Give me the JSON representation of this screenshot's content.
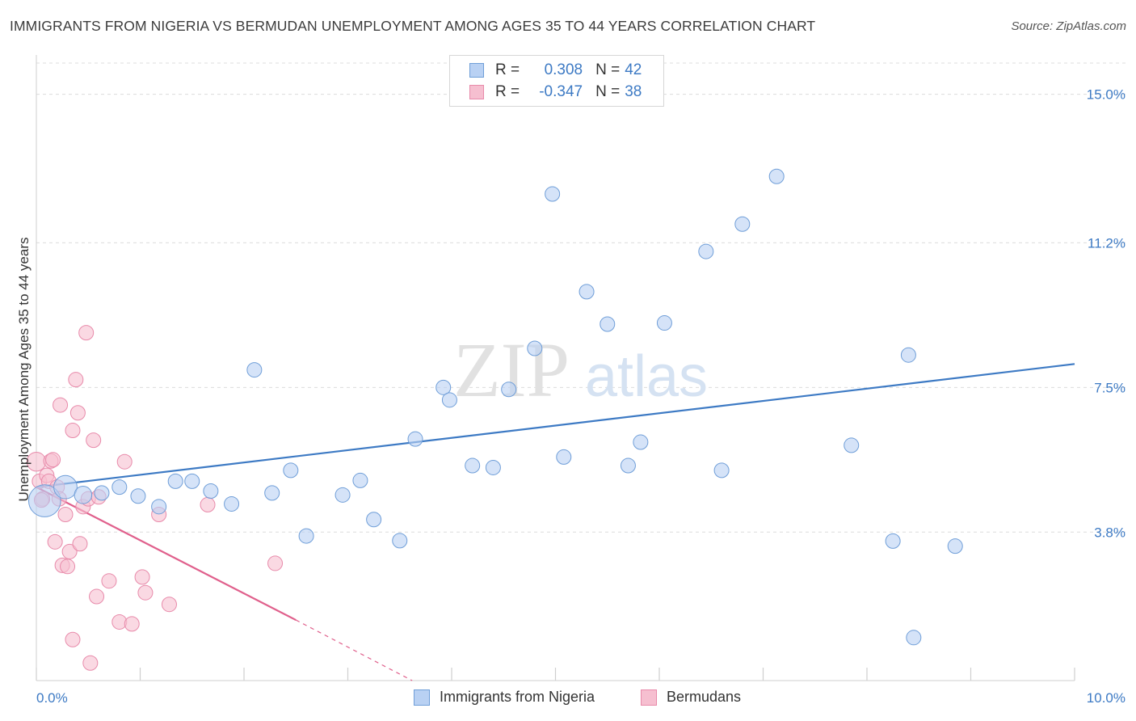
{
  "title": "IMMIGRANTS FROM NIGERIA VS BERMUDAN UNEMPLOYMENT AMONG AGES 35 TO 44 YEARS CORRELATION CHART",
  "source": "Source: ZipAtlas.com",
  "watermark": {
    "zip": "ZIP",
    "atlas": "atlas"
  },
  "legend": {
    "row1": {
      "r_label": "R =",
      "r_value": "0.308",
      "n_label": "N =",
      "n_value": "42"
    },
    "row2": {
      "r_label": "R =",
      "r_value": "-0.347",
      "n_label": "N =",
      "n_value": "38"
    }
  },
  "colors": {
    "blue": "#3d7ac4",
    "blue_fill": "#b9d1f3",
    "pink": "#e0608c",
    "pink_fill": "#f6bfd0",
    "grid": "#dcdcdc",
    "axis_text": "#3d7ac4"
  },
  "chart_data": {
    "type": "scatter",
    "title": "IMMIGRANTS FROM NIGERIA VS BERMUDAN UNEMPLOYMENT AMONG AGES 35 TO 44 YEARS CORRELATION CHART",
    "xlabel": "",
    "ylabel": "Unemployment Among Ages 35 to 44 years",
    "xlim": [
      0,
      10
    ],
    "ylim": [
      0,
      15.8
    ],
    "x_tick_labels": [
      "0.0%",
      "10.0%"
    ],
    "y_ticks": [
      3.8,
      7.5,
      11.2,
      15.0
    ],
    "y_tick_labels": [
      "3.8%",
      "7.5%",
      "11.2%",
      "15.0%"
    ],
    "grid": true,
    "series": [
      {
        "name": "Immigrants from Nigeria",
        "color": "#3d7ac4",
        "points": [
          [
            0.08,
            4.6,
            2.2
          ],
          [
            0.28,
            4.95,
            1.6
          ],
          [
            0.45,
            4.75,
            1.2
          ],
          [
            0.63,
            4.8,
            1.0
          ],
          [
            0.8,
            4.95,
            1.0
          ],
          [
            0.98,
            4.72,
            1.0
          ],
          [
            1.18,
            4.45,
            1.0
          ],
          [
            1.34,
            5.1,
            1.0
          ],
          [
            1.5,
            5.1,
            1.0
          ],
          [
            1.68,
            4.85,
            1.0
          ],
          [
            1.88,
            4.52,
            1.0
          ],
          [
            2.1,
            7.95,
            1.0
          ],
          [
            2.27,
            4.8,
            1.0
          ],
          [
            2.45,
            5.38,
            1.0
          ],
          [
            2.6,
            3.7,
            1.0
          ],
          [
            2.95,
            4.75,
            1.0
          ],
          [
            3.12,
            5.12,
            1.0
          ],
          [
            3.25,
            4.12,
            1.0
          ],
          [
            3.5,
            3.58,
            1.0
          ],
          [
            3.65,
            6.18,
            1.0
          ],
          [
            3.92,
            7.5,
            1.0
          ],
          [
            3.98,
            7.18,
            1.0
          ],
          [
            4.2,
            5.5,
            1.0
          ],
          [
            4.4,
            5.45,
            1.0
          ],
          [
            4.55,
            7.45,
            1.0
          ],
          [
            4.8,
            8.5,
            1.0
          ],
          [
            4.97,
            12.45,
            1.0
          ],
          [
            5.08,
            5.72,
            1.0
          ],
          [
            5.3,
            9.95,
            1.0
          ],
          [
            5.5,
            9.12,
            1.0
          ],
          [
            5.7,
            5.5,
            1.0
          ],
          [
            5.82,
            6.1,
            1.0
          ],
          [
            6.05,
            9.15,
            1.0
          ],
          [
            6.45,
            10.98,
            1.0
          ],
          [
            6.6,
            5.38,
            1.0
          ],
          [
            6.8,
            11.68,
            1.0
          ],
          [
            7.13,
            12.9,
            1.0
          ],
          [
            7.85,
            6.02,
            1.0
          ],
          [
            8.25,
            3.57,
            1.0
          ],
          [
            8.4,
            8.33,
            1.0
          ],
          [
            8.85,
            3.44,
            1.0
          ],
          [
            8.45,
            1.1,
            1.0
          ]
        ]
      },
      {
        "name": "Bermudans",
        "color": "#e0608c",
        "points": [
          [
            0.0,
            5.6,
            1.3
          ],
          [
            0.03,
            5.1,
            1.0
          ],
          [
            0.06,
            4.65,
            1.0
          ],
          [
            0.1,
            5.25,
            1.0
          ],
          [
            0.12,
            5.1,
            1.0
          ],
          [
            0.14,
            5.62,
            1.0
          ],
          [
            0.16,
            5.65,
            1.0
          ],
          [
            0.2,
            4.95,
            1.0
          ],
          [
            0.22,
            4.65,
            1.0
          ],
          [
            0.18,
            3.55,
            1.0
          ],
          [
            0.23,
            7.05,
            1.0
          ],
          [
            0.25,
            2.95,
            1.0
          ],
          [
            0.28,
            4.25,
            1.0
          ],
          [
            0.3,
            2.92,
            1.0
          ],
          [
            0.32,
            3.3,
            1.0
          ],
          [
            0.35,
            6.4,
            1.0
          ],
          [
            0.38,
            7.7,
            1.0
          ],
          [
            0.4,
            6.85,
            1.0
          ],
          [
            0.42,
            3.5,
            1.0
          ],
          [
            0.45,
            4.45,
            1.0
          ],
          [
            0.48,
            8.9,
            1.0
          ],
          [
            0.5,
            4.65,
            1.0
          ],
          [
            0.55,
            6.15,
            1.0
          ],
          [
            0.58,
            2.15,
            1.0
          ],
          [
            0.6,
            4.7,
            1.0
          ],
          [
            0.7,
            2.55,
            1.0
          ],
          [
            0.8,
            1.5,
            1.0
          ],
          [
            0.85,
            5.6,
            1.0
          ],
          [
            0.92,
            1.45,
            1.0
          ],
          [
            1.02,
            2.65,
            1.0
          ],
          [
            1.05,
            2.25,
            1.0
          ],
          [
            1.18,
            4.25,
            1.0
          ],
          [
            1.28,
            1.95,
            1.0
          ],
          [
            1.65,
            4.5,
            1.0
          ],
          [
            2.3,
            3.0,
            1.0
          ],
          [
            0.35,
            1.05,
            1.0
          ],
          [
            0.52,
            0.45,
            1.0
          ],
          [
            0.05,
            4.62,
            1.0
          ]
        ]
      }
    ],
    "trend_lines": [
      {
        "series": "Immigrants from Nigeria",
        "x": [
          0.0,
          10.0
        ],
        "y": [
          4.95,
          8.1
        ],
        "dashed_to": null
      },
      {
        "series": "Bermudans",
        "x": [
          0.0,
          2.5
        ],
        "y": [
          4.95,
          1.55
        ],
        "dashed_to": [
          3.62,
          0.0
        ]
      }
    ]
  },
  "bottom_legend": {
    "item1": "Immigrants from Nigeria",
    "item2": "Bermudans"
  }
}
